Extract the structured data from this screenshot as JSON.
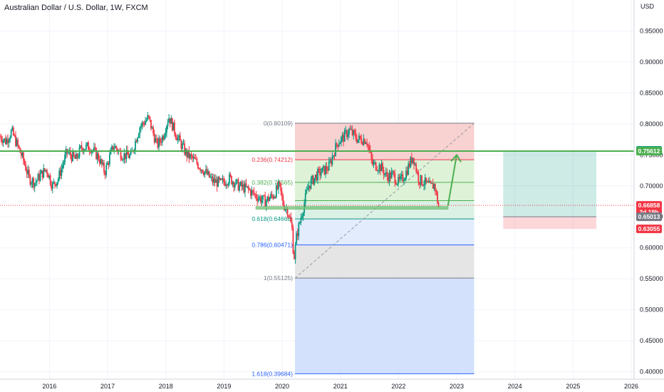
{
  "chart_data": {
    "type": "candlestick",
    "title": "Australian Dollar / U.S. Dollar, 1W, FXCM",
    "currency_label": "USD",
    "ylim": [
      0.388,
      1.0
    ],
    "xlim": [
      2015.15,
      2026.0
    ],
    "y_ticks": [
      "0.95000",
      "0.90000",
      "0.85000",
      "0.80000",
      "0.75000",
      "0.70000",
      "0.65000",
      "0.60000",
      "0.55000",
      "0.50000",
      "0.45000",
      "0.40000"
    ],
    "x_ticks": [
      "2016",
      "2017",
      "2018",
      "2019",
      "2020",
      "2021",
      "2022",
      "2023",
      "2024",
      "2025",
      "2026"
    ],
    "price_path": [
      [
        2015.15,
        0.78
      ],
      [
        2015.25,
        0.772
      ],
      [
        2015.35,
        0.788
      ],
      [
        2015.45,
        0.765
      ],
      [
        2015.55,
        0.742
      ],
      [
        2015.65,
        0.712
      ],
      [
        2015.75,
        0.705
      ],
      [
        2015.85,
        0.718
      ],
      [
        2015.95,
        0.727
      ],
      [
        2016.05,
        0.7
      ],
      [
        2016.15,
        0.712
      ],
      [
        2016.3,
        0.755
      ],
      [
        2016.45,
        0.742
      ],
      [
        2016.55,
        0.762
      ],
      [
        2016.7,
        0.763
      ],
      [
        2016.85,
        0.745
      ],
      [
        2016.95,
        0.722
      ],
      [
        2017.1,
        0.765
      ],
      [
        2017.25,
        0.75
      ],
      [
        2017.4,
        0.748
      ],
      [
        2017.55,
        0.795
      ],
      [
        2017.7,
        0.81
      ],
      [
        2017.85,
        0.765
      ],
      [
        2017.95,
        0.78
      ],
      [
        2018.05,
        0.812
      ],
      [
        2018.2,
        0.778
      ],
      [
        2018.35,
        0.752
      ],
      [
        2018.5,
        0.74
      ],
      [
        2018.65,
        0.725
      ],
      [
        2018.8,
        0.708
      ],
      [
        2018.95,
        0.704
      ],
      [
        2019.1,
        0.712
      ],
      [
        2019.25,
        0.7
      ],
      [
        2019.4,
        0.695
      ],
      [
        2019.55,
        0.684
      ],
      [
        2019.7,
        0.675
      ],
      [
        2019.85,
        0.685
      ],
      [
        2019.95,
        0.7
      ],
      [
        2020.02,
        0.67
      ],
      [
        2020.1,
        0.66
      ],
      [
        2020.17,
        0.63
      ],
      [
        2020.2,
        0.58
      ],
      [
        2020.25,
        0.62
      ],
      [
        2020.35,
        0.66
      ],
      [
        2020.45,
        0.7
      ],
      [
        2020.6,
        0.718
      ],
      [
        2020.8,
        0.73
      ],
      [
        2020.95,
        0.77
      ],
      [
        2021.05,
        0.778
      ],
      [
        2021.15,
        0.79
      ],
      [
        2021.3,
        0.775
      ],
      [
        2021.45,
        0.775
      ],
      [
        2021.55,
        0.735
      ],
      [
        2021.7,
        0.73
      ],
      [
        2021.8,
        0.715
      ],
      [
        2021.9,
        0.718
      ],
      [
        2022.0,
        0.705
      ],
      [
        2022.1,
        0.716
      ],
      [
        2022.25,
        0.748
      ],
      [
        2022.35,
        0.71
      ],
      [
        2022.45,
        0.705
      ],
      [
        2022.55,
        0.698
      ],
      [
        2022.62,
        0.702
      ],
      [
        2022.7,
        0.66
      ]
    ],
    "horizontal_levels": [
      {
        "name": "resistance",
        "value": 0.7561,
        "color": "#4caf50"
      }
    ],
    "price_line": {
      "value": 0.66858,
      "color": "#f23645"
    },
    "fibonacci": {
      "x_start": 2020.22,
      "x_end": 2023.3,
      "levels": [
        {
          "ratio": "0",
          "value": 0.80109,
          "label": "0(0.80109)",
          "color": "#787b86",
          "fill": "#f7c9c9"
        },
        {
          "ratio": "0.236",
          "value": 0.74212,
          "label": "0.236(0.74212)",
          "color": "#f23645",
          "fill": "#d8f0d0"
        },
        {
          "ratio": "0.382",
          "value": 0.70565,
          "label": "0.382(0.70565)",
          "color": "#4caf50",
          "fill": "#d8f0d0"
        },
        {
          "ratio": "0.5",
          "value": 0.67617,
          "label": "",
          "color": "#4caf50",
          "fill": "#d5eee0"
        },
        {
          "ratio": "0.618",
          "value": 0.64668,
          "label": "0.618(0.64668)",
          "color": "#089981",
          "fill": "#dde9fb"
        },
        {
          "ratio": "0.786",
          "value": 0.60471,
          "label": "0.786(0.60471)",
          "color": "#2962ff",
          "fill": "#e1e1e1"
        },
        {
          "ratio": "1",
          "value": 0.55125,
          "label": "1(0.55125)",
          "color": "#787b86",
          "fill": "#ccdcfb"
        },
        {
          "ratio": "1.618",
          "value": 0.39684,
          "label": "1.618(0.39684)",
          "color": "#2962ff",
          "fill": ""
        }
      ]
    },
    "position_box": {
      "x_start": 2023.8,
      "x_end": 2025.4,
      "entry": 0.65013,
      "target": 0.7573,
      "stop": 0.63055
    },
    "projection_arrow": {
      "from": [
        2022.85,
        0.668
      ],
      "to": [
        2023.0,
        0.75
      ]
    },
    "support_zone": {
      "x_start": 2019.55,
      "x_end": 2022.85,
      "low": 0.6625,
      "high": 0.6665
    },
    "price_badges": [
      {
        "text": "0.75730",
        "value": 0.7573,
        "color": "#089981"
      },
      {
        "text": "0.75612",
        "value": 0.75612,
        "color": "#4caf50"
      },
      {
        "text": "0.66858",
        "value": 0.66858,
        "color": "#f23645"
      },
      {
        "text": "2d 19h",
        "value": 0.65775,
        "color": "#f23645"
      },
      {
        "text": "0.65013",
        "value": 0.65013,
        "color": "#787b86"
      },
      {
        "text": "0.63055",
        "value": 0.63055,
        "color": "#f23645"
      }
    ],
    "grid": true,
    "legend": "none"
  }
}
